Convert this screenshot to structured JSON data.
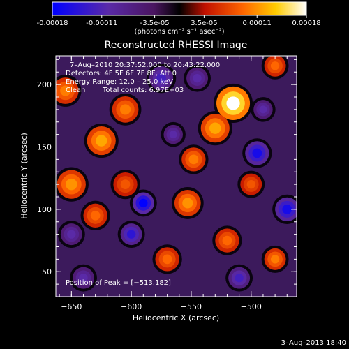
{
  "colorbar": {
    "tick_labels": [
      "-0.00018",
      "-0.00011",
      "-3.5e-05",
      "3.5e-05",
      "0.00011",
      "0.00018"
    ],
    "tick_values": [
      -0.00018,
      -0.00011,
      -3.5e-05,
      3.5e-05,
      0.00011,
      0.00018
    ],
    "range": [
      -0.00018,
      0.00018
    ],
    "unit_label": "(photons cm⁻² s⁻¹ asec⁻²)",
    "colors": [
      "#0000ff",
      "#5a2aa8",
      "#4a1560",
      "#000000",
      "#c01000",
      "#ff6600",
      "#ffcc00",
      "#ffffff"
    ]
  },
  "chart_data": {
    "type": "heatmap",
    "title": "Reconstructed RHESSI Image",
    "xlabel": "Heliocentric X (arcsec)",
    "ylabel": "Heliocentric Y (arcsec)",
    "xlim": [
      -663,
      -462
    ],
    "ylim": [
      30,
      223
    ],
    "x_ticks": [
      -650,
      -600,
      -550,
      -500
    ],
    "y_ticks": [
      50,
      100,
      150,
      200
    ],
    "x_tick_labels": [
      "−650",
      "−600",
      "−550",
      "−500"
    ],
    "y_tick_labels": [
      "50",
      "100",
      "150",
      "200"
    ],
    "peak_position": [
      -513,
      182
    ],
    "sources": [
      {
        "x": -515,
        "y": 185,
        "r": 14,
        "v": 0.00018
      },
      {
        "x": -530,
        "y": 165,
        "r": 12,
        "v": 0.00012
      },
      {
        "x": -548,
        "y": 140,
        "r": 10,
        "v": 0.0001
      },
      {
        "x": -553,
        "y": 105,
        "r": 11,
        "v": 0.00011
      },
      {
        "x": -625,
        "y": 155,
        "r": 12,
        "v": 0.00012
      },
      {
        "x": -605,
        "y": 180,
        "r": 11,
        "v": 0.0001
      },
      {
        "x": -650,
        "y": 120,
        "r": 12,
        "v": 0.00011
      },
      {
        "x": -655,
        "y": 195,
        "r": 11,
        "v": 0.0001
      },
      {
        "x": -630,
        "y": 95,
        "r": 10,
        "v": 9e-05
      },
      {
        "x": -480,
        "y": 215,
        "r": 9,
        "v": 9e-05
      },
      {
        "x": -570,
        "y": 60,
        "r": 10,
        "v": 9e-05
      },
      {
        "x": -605,
        "y": 120,
        "r": 10,
        "v": 8e-05
      },
      {
        "x": -520,
        "y": 75,
        "r": 10,
        "v": 9e-05
      },
      {
        "x": -480,
        "y": 60,
        "r": 9,
        "v": 0.0001
      },
      {
        "x": -500,
        "y": 120,
        "r": 9,
        "v": 8e-05
      },
      {
        "x": -600,
        "y": 80,
        "r": 9,
        "v": -0.00014
      },
      {
        "x": -590,
        "y": 105,
        "r": 9,
        "v": -0.00018
      },
      {
        "x": -495,
        "y": 145,
        "r": 10,
        "v": -0.00016
      },
      {
        "x": -470,
        "y": 100,
        "r": 10,
        "v": -0.00016
      },
      {
        "x": -575,
        "y": 205,
        "r": 10,
        "v": -0.00012
      },
      {
        "x": -545,
        "y": 205,
        "r": 9,
        "v": -0.0001
      },
      {
        "x": -490,
        "y": 180,
        "r": 8,
        "v": -0.0001
      },
      {
        "x": -650,
        "y": 80,
        "r": 9,
        "v": -0.0001
      },
      {
        "x": -565,
        "y": 160,
        "r": 8,
        "v": -0.0001
      },
      {
        "x": -510,
        "y": 45,
        "r": 9,
        "v": -0.00012
      },
      {
        "x": -640,
        "y": 45,
        "r": 9,
        "v": -0.0001
      }
    ]
  },
  "annotations": {
    "time_range": "7–Aug–2010 20:37:52.000 to 20:43:22.000",
    "detectors": "Detectors: 4F 5F 6F 7F 8F, Att 0",
    "energy": "Energy Range: 12.0 – 25.0 keV",
    "method": "Clean",
    "total_counts": "Total counts: 6.97E+03",
    "peak": "Position of Peak = [−513,182]"
  },
  "footer": {
    "timestamp": "3–Aug–2013 18:40"
  }
}
